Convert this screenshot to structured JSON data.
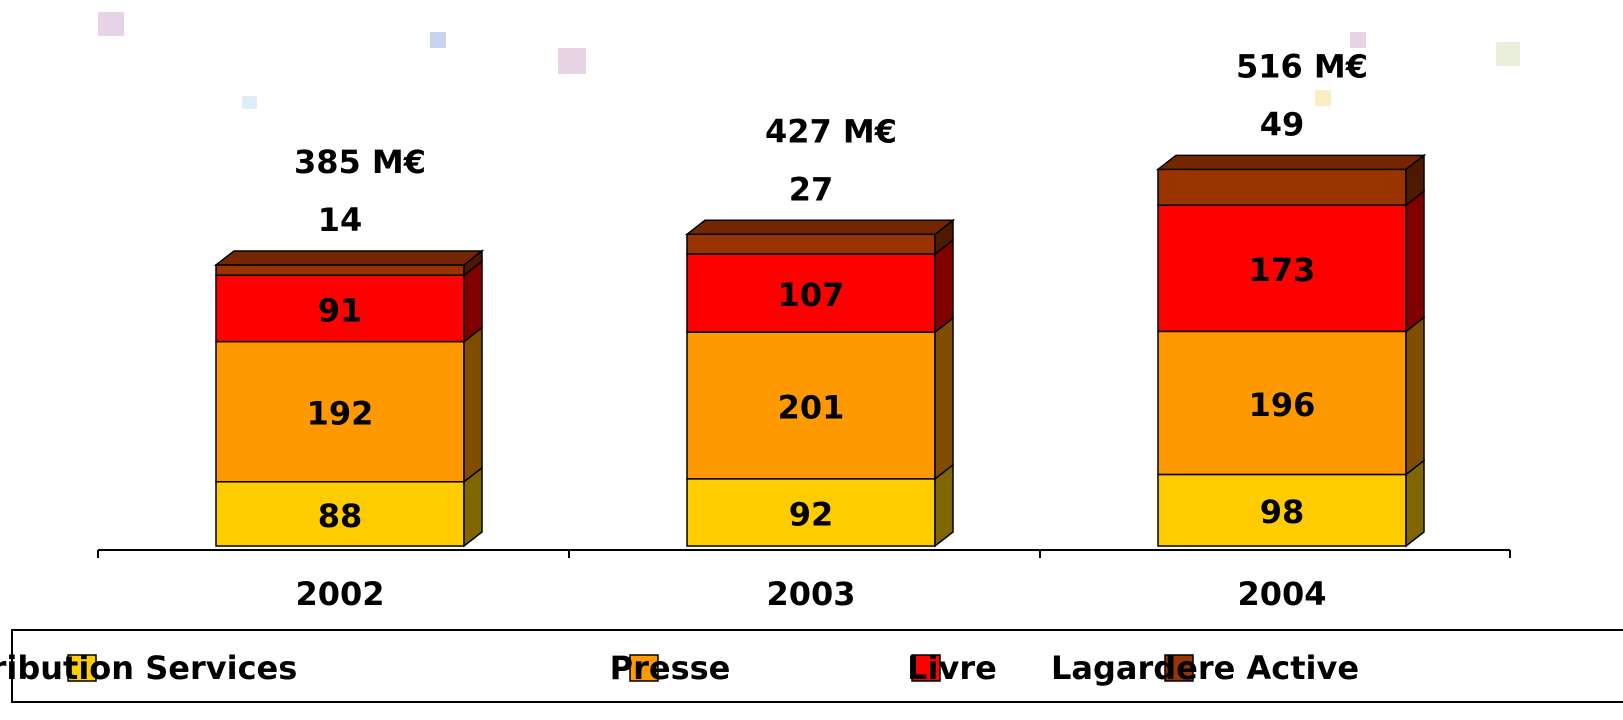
{
  "chart_data": {
    "type": "stacked-bar-3d",
    "categories": [
      "2002",
      "2003",
      "2004"
    ],
    "series": [
      {
        "name": "Distribution Services",
        "color": "#ffcc00",
        "values": [
          88,
          92,
          98
        ]
      },
      {
        "name": "Presse",
        "color": "#ff9900",
        "values": [
          192,
          201,
          196
        ]
      },
      {
        "name": "Livre",
        "color": "#ff0000",
        "values": [
          91,
          107,
          173
        ]
      },
      {
        "name": "Lagardere Active",
        "color": "#993300",
        "values": [
          14,
          27,
          49
        ]
      }
    ],
    "totals": {
      "values": [
        385,
        427,
        516
      ],
      "value_labels": [
        "385 M€",
        "427 M€",
        "516 M€"
      ]
    }
  }
}
